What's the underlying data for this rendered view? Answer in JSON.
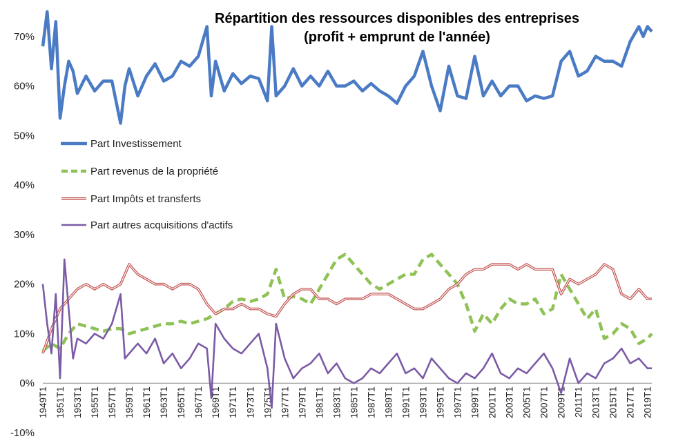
{
  "chart_data": {
    "type": "line",
    "title_line1": "Répartition des ressources disponibles des entreprises",
    "title_line2": "(profit + emprunt de l'année)",
    "xlabel": "",
    "ylabel": "",
    "ylim": [
      -10,
      75
    ],
    "yticks": [
      "-10%",
      "0%",
      "10%",
      "20%",
      "30%",
      "40%",
      "50%",
      "60%",
      "70%"
    ],
    "ytick_values": [
      -10,
      0,
      10,
      20,
      30,
      40,
      50,
      60,
      70
    ],
    "xtick_labels": [
      "1949T1",
      "1951T1",
      "1953T1",
      "1955T1",
      "1957T1",
      "1959T1",
      "1961T1",
      "1963T1",
      "1965T1",
      "1967T1",
      "1969T1",
      "1971T1",
      "1973T1",
      "1975T1",
      "1977T1",
      "1979T1",
      "1981T1",
      "1983T1",
      "1985T1",
      "1987T1",
      "1989T1",
      "1991T1",
      "1993T1",
      "1995T1",
      "1997T1",
      "1999T1",
      "2001T1",
      "2003T1",
      "2005T1",
      "2007T1",
      "2009T1",
      "2011T1",
      "2013T1",
      "2015T1",
      "2017T1",
      "2019T1"
    ],
    "x_range": [
      1949,
      2019.5
    ],
    "grid": "none",
    "legend_position": "left",
    "series": [
      {
        "name": "Part Investissement",
        "color": "#4a7bc4",
        "style": "solid-thick",
        "x": [
          1949,
          1949.5,
          1950,
          1950.5,
          1951,
          1951.5,
          1952,
          1952.5,
          1953,
          1954,
          1955,
          1956,
          1957,
          1958,
          1958.5,
          1959,
          1960,
          1961,
          1962,
          1963,
          1964,
          1965,
          1966,
          1967,
          1968,
          1968.5,
          1969,
          1970,
          1971,
          1972,
          1973,
          1974,
          1975,
          1975.5,
          1976,
          1977,
          1978,
          1979,
          1980,
          1981,
          1982,
          1983,
          1984,
          1985,
          1986,
          1987,
          1988,
          1989,
          1990,
          1991,
          1992,
          1993,
          1994,
          1995,
          1996,
          1997,
          1998,
          1999,
          2000,
          2001,
          2002,
          2003,
          2004,
          2005,
          2006,
          2007,
          2008,
          2009,
          2010,
          2011,
          2012,
          2013,
          2014,
          2015,
          2016,
          2017,
          2018,
          2018.5,
          2019,
          2019.5
        ],
        "values": [
          68,
          75,
          63.5,
          73,
          53.5,
          60,
          65,
          63,
          58.5,
          62,
          59,
          61,
          61,
          52.5,
          60,
          63.5,
          58,
          62,
          64.5,
          61,
          62,
          65,
          64,
          66,
          72,
          58,
          65,
          59,
          62.5,
          60.5,
          62,
          61.5,
          57,
          72,
          58,
          60,
          63.5,
          60,
          62,
          60,
          63,
          60,
          60,
          61,
          59,
          60.5,
          59,
          58,
          56.5,
          60,
          62,
          67,
          60,
          55,
          64,
          58,
          57.5,
          66,
          58,
          61,
          58,
          60,
          60,
          57,
          58,
          57.5,
          58,
          65,
          67,
          62,
          63,
          66,
          65,
          65,
          64,
          69,
          72,
          70,
          72,
          71
        ]
      },
      {
        "name": "Part revenus de la propriété",
        "color": "#8fc256",
        "style": "dashed-thick",
        "x": [
          1949,
          1950,
          1951,
          1952,
          1953,
          1954,
          1955,
          1956,
          1957,
          1958,
          1959,
          1960,
          1961,
          1962,
          1963,
          1964,
          1965,
          1966,
          1967,
          1968,
          1969,
          1970,
          1971,
          1972,
          1973,
          1974,
          1975,
          1976,
          1977,
          1978,
          1979,
          1980,
          1981,
          1982,
          1983,
          1984,
          1985,
          1986,
          1987,
          1988,
          1989,
          1990,
          1991,
          1992,
          1993,
          1994,
          1995,
          1996,
          1997,
          1998,
          1999,
          2000,
          2001,
          2002,
          2003,
          2004,
          2005,
          2006,
          2007,
          2008,
          2009,
          2010,
          2011,
          2012,
          2013,
          2014,
          2015,
          2016,
          2017,
          2018,
          2019,
          2019.5
        ],
        "values": [
          6.5,
          8,
          7,
          10,
          12,
          11.5,
          11,
          10.5,
          11,
          11,
          10,
          10.5,
          11,
          11.5,
          12,
          12,
          12.5,
          12,
          12.5,
          13,
          14,
          15,
          16.5,
          17,
          16.5,
          17,
          18,
          23,
          17,
          17.5,
          17,
          16,
          19,
          22,
          25,
          26,
          24,
          22,
          20,
          19,
          20,
          21,
          22,
          22,
          25,
          26,
          24,
          22,
          20,
          16,
          10.5,
          14,
          12,
          15,
          17,
          16,
          16,
          17,
          14,
          15,
          22,
          19,
          16,
          13,
          15,
          9,
          10,
          12,
          11,
          8,
          9,
          10
        ]
      },
      {
        "name": "Part Impôts et transferts",
        "color": "#c0504d",
        "style": "double-line",
        "x": [
          1949,
          1950,
          1951,
          1952,
          1953,
          1954,
          1955,
          1956,
          1957,
          1958,
          1959,
          1960,
          1961,
          1962,
          1963,
          1964,
          1965,
          1966,
          1967,
          1968,
          1969,
          1970,
          1971,
          1972,
          1973,
          1974,
          1975,
          1976,
          1977,
          1978,
          1979,
          1980,
          1981,
          1982,
          1983,
          1984,
          1985,
          1986,
          1987,
          1988,
          1989,
          1990,
          1991,
          1992,
          1993,
          1994,
          1995,
          1996,
          1997,
          1998,
          1999,
          2000,
          2001,
          2002,
          2003,
          2004,
          2005,
          2006,
          2007,
          2008,
          2009,
          2010,
          2011,
          2012,
          2013,
          2014,
          2015,
          2016,
          2017,
          2018,
          2019,
          2019.5
        ],
        "values": [
          6,
          11,
          15,
          17,
          19,
          20,
          19,
          20,
          19,
          20,
          24,
          22,
          21,
          20,
          20,
          19,
          20,
          20,
          19,
          16,
          14,
          15,
          15,
          16,
          15,
          15,
          14,
          13.5,
          16,
          18,
          19,
          19,
          17,
          17,
          16,
          17,
          17,
          17,
          18,
          18,
          18,
          17,
          16,
          15,
          15,
          16,
          17,
          19,
          20,
          22,
          23,
          23,
          24,
          24,
          24,
          23,
          24,
          23,
          23,
          23,
          18,
          21,
          20,
          21,
          22,
          24,
          23,
          18,
          17,
          19,
          17,
          17
        ]
      },
      {
        "name": "Part autres acquisitions d'actifs",
        "color": "#7b5aa6",
        "style": "solid",
        "x": [
          1949,
          1949.5,
          1950,
          1950.5,
          1951,
          1951.5,
          1952,
          1952.5,
          1953,
          1954,
          1955,
          1956,
          1957,
          1958,
          1958.5,
          1959,
          1960,
          1961,
          1962,
          1963,
          1964,
          1965,
          1966,
          1967,
          1968,
          1968.5,
          1969,
          1970,
          1971,
          1972,
          1973,
          1974,
          1975,
          1975.5,
          1976,
          1977,
          1978,
          1979,
          1980,
          1981,
          1982,
          1983,
          1984,
          1985,
          1986,
          1987,
          1988,
          1989,
          1990,
          1991,
          1992,
          1993,
          1994,
          1995,
          1996,
          1997,
          1998,
          1999,
          2000,
          2001,
          2002,
          2003,
          2004,
          2005,
          2006,
          2007,
          2008,
          2009,
          2010,
          2011,
          2012,
          2013,
          2014,
          2015,
          2016,
          2017,
          2018,
          2019,
          2019.5
        ],
        "values": [
          20,
          12,
          6,
          18,
          1,
          25,
          15,
          5,
          9,
          8,
          10,
          9,
          12,
          18,
          5,
          6,
          8,
          6,
          9,
          4,
          6,
          3,
          5,
          8,
          7,
          -3,
          12,
          9,
          7,
          6,
          8,
          10,
          3,
          -5,
          12,
          5,
          1,
          3,
          4,
          6,
          2,
          4,
          1,
          0,
          1,
          3,
          2,
          4,
          6,
          2,
          3,
          1,
          5,
          3,
          1,
          0,
          2,
          1,
          3,
          6,
          2,
          1,
          3,
          2,
          4,
          6,
          3,
          -2,
          5,
          0,
          2,
          1,
          4,
          5,
          7,
          4,
          5,
          3,
          3
        ]
      }
    ]
  }
}
